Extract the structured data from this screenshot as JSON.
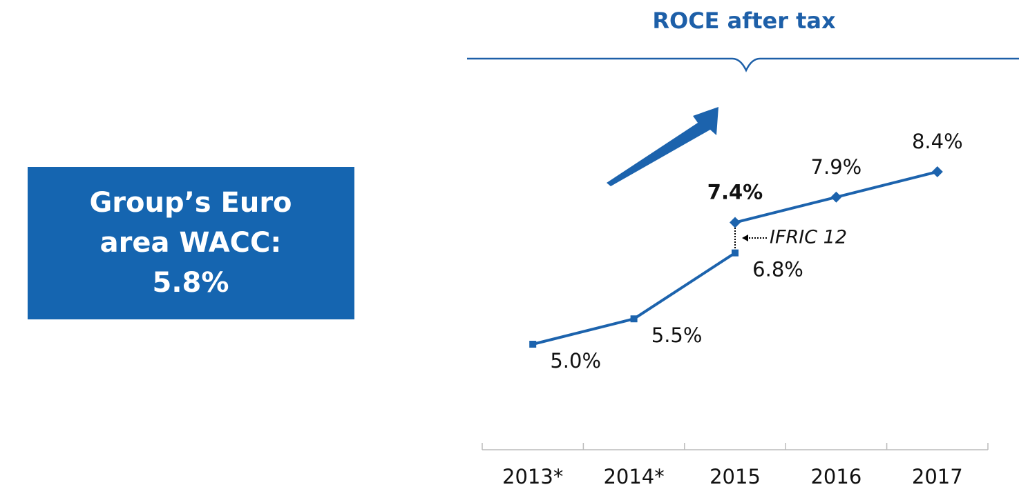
{
  "chart_data": {
    "type": "line",
    "title": "ROCE after tax",
    "callout": "Group’s Euro area WACC: 5.8%",
    "annotation": "IFRIC 12",
    "categories": [
      "2013*",
      "2014*",
      "2015",
      "2016",
      "2017"
    ],
    "series": [
      {
        "color": "#1c63ad",
        "values": [
          5.0,
          5.5,
          6.8,
          null,
          null
        ],
        "value_labels": [
          "5.0%",
          "5.5%",
          "6.8%",
          null,
          null
        ]
      },
      {
        "color": "#1c63ad",
        "values": [
          null,
          null,
          7.4,
          7.9,
          8.4
        ],
        "value_labels": [
          null,
          null,
          "7.4%",
          "7.9%",
          "8.4%"
        ]
      }
    ]
  }
}
